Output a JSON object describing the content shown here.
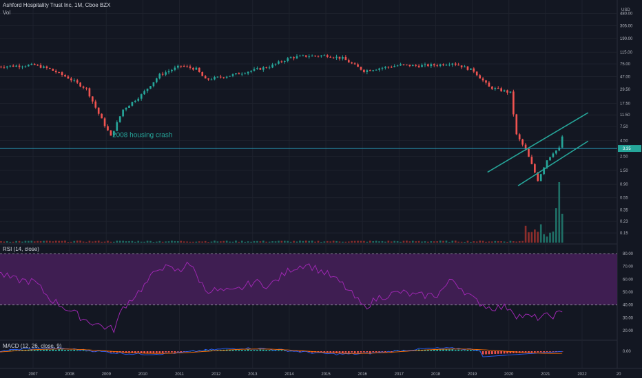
{
  "header": {
    "symbol_line": "Ashford Hospitality Trust Inc, 1M, Cboe BZX",
    "vol_label": "Vol",
    "rsi_label": "RSI (14, close)",
    "macd_label": "MACD (12, 26, close, 9)"
  },
  "colors": {
    "background": "#131722",
    "up": "#26a69a",
    "down": "#ef5350",
    "rsi_line": "#9c27b0",
    "rsi_band": "#3f1e52",
    "hline": "#2aa1c0",
    "channel": "#26a69a",
    "macd_line": "#2962ff",
    "signal_line": "#ff6d00"
  },
  "chart_data": [
    {
      "type": "candlestick",
      "title": "Ashford Hospitality Trust Inc, 1M, Cboe BZX",
      "scale": "log",
      "currency": "USD",
      "price_ticks": [
        "1840.00",
        "1195.00",
        "765.00",
        "480.00",
        "305.00",
        "190.00",
        "115.00",
        "75.00",
        "47.00",
        "29.50",
        "17.50",
        "11.50",
        "7.50",
        "4.50",
        "2.50",
        "1.50",
        "0.90",
        "0.55",
        "0.35",
        "0.23",
        "0.15"
      ],
      "last_price_label": "3.35",
      "last_price": 3.35,
      "x_ticks": [
        "2007",
        "2008",
        "2009",
        "2010",
        "2011",
        "2012",
        "2013",
        "2014",
        "2015",
        "2016",
        "2017",
        "2018",
        "2019",
        "2020",
        "2021",
        "2022",
        "20"
      ],
      "annotation": "2008 housing crash",
      "channel_lines": [
        {
          "from": [
            "2019-06",
            1.4
          ],
          "to": [
            "2022-03",
            12.5
          ]
        },
        {
          "from": [
            "2020-04",
            0.85
          ],
          "to": [
            "2022-03",
            4.4
          ]
        }
      ],
      "monthly_close_anchors": [
        [
          "2006-01",
          68
        ],
        [
          "2007-01",
          72
        ],
        [
          "2007-06",
          62
        ],
        [
          "2007-12",
          45
        ],
        [
          "2008-06",
          30
        ],
        [
          "2008-10",
          12
        ],
        [
          "2009-02",
          5.2
        ],
        [
          "2009-06",
          14
        ],
        [
          "2009-12",
          24
        ],
        [
          "2010-06",
          50
        ],
        [
          "2011-01",
          70
        ],
        [
          "2011-06",
          62
        ],
        [
          "2011-09",
          42
        ],
        [
          "2012-06",
          50
        ],
        [
          "2013-01",
          60
        ],
        [
          "2013-06",
          68
        ],
        [
          "2014-01",
          95
        ],
        [
          "2014-06",
          100
        ],
        [
          "2015-01",
          102
        ],
        [
          "2015-06",
          92
        ],
        [
          "2016-01",
          58
        ],
        [
          "2016-06",
          64
        ],
        [
          "2017-01",
          72
        ],
        [
          "2017-06",
          70
        ],
        [
          "2018-01",
          72
        ],
        [
          "2018-06",
          78
        ],
        [
          "2019-01",
          58
        ],
        [
          "2019-06",
          32
        ],
        [
          "2020-01",
          26
        ],
        [
          "2020-03",
          5.5
        ],
        [
          "2020-06",
          3.2
        ],
        [
          "2020-10",
          1.05
        ],
        [
          "2021-01",
          2.2
        ],
        [
          "2021-03",
          2.9
        ],
        [
          "2021-05",
          3.35
        ],
        [
          "2021-06",
          5.2
        ]
      ],
      "volume_note": "volume bars in lower portion of price pane, large spike in 2021"
    },
    {
      "type": "line",
      "title": "RSI (14, close)",
      "y_ticks": [
        "80.00",
        "70.00",
        "60.00",
        "50.00",
        "40.00",
        "30.00",
        "20.00"
      ],
      "bands": [
        40,
        80
      ],
      "anchors": [
        [
          "2006-01",
          65
        ],
        [
          "2006-06",
          60
        ],
        [
          "2007-01",
          58
        ],
        [
          "2007-06",
          45
        ],
        [
          "2008-01",
          35
        ],
        [
          "2008-06",
          28
        ],
        [
          "2009-01",
          22
        ],
        [
          "2009-03",
          21
        ],
        [
          "2009-06",
          38
        ],
        [
          "2010-01",
          55
        ],
        [
          "2010-06",
          70
        ],
        [
          "2011-01",
          66
        ],
        [
          "2011-03",
          75
        ],
        [
          "2011-09",
          52
        ],
        [
          "2012-06",
          50
        ],
        [
          "2013-01",
          58
        ],
        [
          "2013-06",
          55
        ],
        [
          "2014-01",
          68
        ],
        [
          "2014-06",
          72
        ],
        [
          "2015-01",
          64
        ],
        [
          "2015-06",
          56
        ],
        [
          "2016-01",
          38
        ],
        [
          "2016-06",
          46
        ],
        [
          "2017-01",
          50
        ],
        [
          "2017-06",
          47
        ],
        [
          "2018-01",
          48
        ],
        [
          "2018-06",
          60
        ],
        [
          "2019-01",
          44
        ],
        [
          "2019-06",
          38
        ],
        [
          "2020-01",
          38
        ],
        [
          "2020-03",
          32
        ],
        [
          "2020-09",
          30
        ],
        [
          "2021-01",
          31
        ],
        [
          "2021-05",
          33
        ]
      ]
    },
    {
      "type": "histogram+line",
      "title": "MACD (12, 26, close, 9)",
      "y_ticks": [
        "0.00"
      ]
    }
  ]
}
